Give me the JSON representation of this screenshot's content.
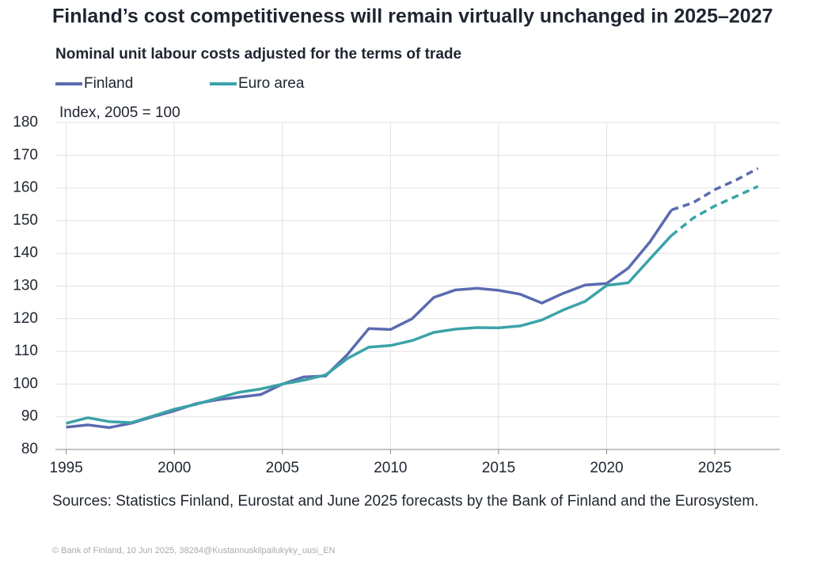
{
  "chart_data": {
    "type": "line",
    "title": "Finland’s cost competitiveness will remain virtually unchanged in 2025–2027",
    "subtitle": "Nominal unit labour costs adjusted for the terms of trade",
    "y_label": "Index, 2005 = 100",
    "source": "Sources: Statistics Finland, Eurostat and June 2025 forecasts by the Bank of Finland and the Eurosystem.",
    "footer": "© Bank of Finland, 10 Jun 2025, 38284@Kustannuskilpailukyky_uusi_EN",
    "x": [
      1995,
      1996,
      1997,
      1998,
      1999,
      2000,
      2001,
      2002,
      2003,
      2004,
      2005,
      2006,
      2007,
      2008,
      2009,
      2010,
      2011,
      2012,
      2013,
      2014,
      2015,
      2016,
      2017,
      2018,
      2019,
      2020,
      2021,
      2022,
      2023,
      2024,
      2025,
      2026,
      2027
    ],
    "series": [
      {
        "name": "Finland",
        "color": "#5b6bb0",
        "values": [
          86.8,
          87.5,
          86.7,
          88,
          90,
          91.8,
          94,
          95.2,
          96,
          96.8,
          100,
          102.2,
          102.5,
          109,
          117,
          116.7,
          120,
          126.5,
          128.8,
          129.3,
          128.7,
          127.5,
          124.8,
          127.8,
          130.3,
          130.8,
          135.5,
          143.5,
          153.3,
          155.5,
          159.5,
          162.5,
          166
        ]
      },
      {
        "name": "Euro area",
        "color": "#3aa3a8",
        "values": [
          88,
          89.7,
          88.5,
          88.2,
          90.2,
          92.3,
          93.8,
          95.7,
          97.5,
          98.5,
          100,
          101.2,
          102.8,
          107.8,
          111.3,
          111.8,
          113.3,
          115.8,
          116.8,
          117.3,
          117.2,
          117.8,
          119.6,
          122.7,
          125.3,
          130.2,
          131,
          138.3,
          145.5,
          150.8,
          154.5,
          157.5,
          160.5
        ]
      }
    ],
    "forecast_start": 2023,
    "xlim": [
      1994.5,
      2028
    ],
    "xticks": [
      1995,
      2000,
      2005,
      2010,
      2015,
      2020,
      2025
    ],
    "ylim": [
      80,
      180
    ],
    "yticks": [
      80,
      90,
      100,
      110,
      120,
      130,
      140,
      150,
      160,
      170,
      180
    ],
    "grid": true,
    "legend": "top-left"
  }
}
